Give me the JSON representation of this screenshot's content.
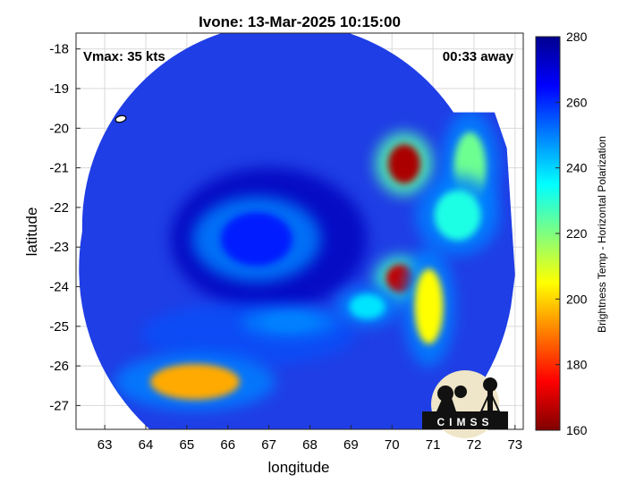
{
  "title": "Ivone: 13-Mar-2025 10:15:00",
  "annotations": {
    "vmax": "Vmax: 35 kts",
    "away": "00:33 away"
  },
  "axes": {
    "xlabel": "longitude",
    "ylabel": "latitude",
    "xlim": [
      62.3,
      73.2
    ],
    "ylim": [
      -27.6,
      -17.6
    ],
    "xticks": [
      63,
      64,
      65,
      66,
      67,
      68,
      69,
      70,
      71,
      72,
      73
    ],
    "yticks": [
      -18,
      -19,
      -20,
      -21,
      -22,
      -23,
      -24,
      -25,
      -26,
      -27
    ],
    "grid": true
  },
  "colorbar": {
    "label": "Brightness Temp - Horizontal Polarization",
    "range": [
      160,
      280
    ],
    "ticks": [
      280,
      260,
      240,
      220,
      200,
      180,
      160
    ],
    "colormap": "jet"
  },
  "logo": {
    "text": "CIMSS"
  },
  "chart_data": {
    "type": "heatmap",
    "title": "Ivone: 13-Mar-2025 10:15:00",
    "xlabel": "longitude",
    "ylabel": "latitude",
    "background_value": 268,
    "swath_center": [
      67.4,
      -22.6
    ],
    "swath_radius_deg": 5.2,
    "features": [
      {
        "lon": 70.3,
        "lat": -20.9,
        "value": 165
      },
      {
        "lon": 70.2,
        "lat": -23.8,
        "value": 168
      },
      {
        "lon": 70.9,
        "lat": -24.5,
        "value": 205
      },
      {
        "lon": 71.9,
        "lat": -21.0,
        "value": 222
      },
      {
        "lon": 71.6,
        "lat": -22.2,
        "value": 232
      },
      {
        "lon": 69.4,
        "lat": -24.5,
        "value": 238
      },
      {
        "lon": 65.2,
        "lat": -26.4,
        "value": 195
      },
      {
        "lon": 67.5,
        "lat": -24.9,
        "value": 250
      },
      {
        "lon": 66.7,
        "lat": -22.8,
        "value": 262
      }
    ]
  }
}
